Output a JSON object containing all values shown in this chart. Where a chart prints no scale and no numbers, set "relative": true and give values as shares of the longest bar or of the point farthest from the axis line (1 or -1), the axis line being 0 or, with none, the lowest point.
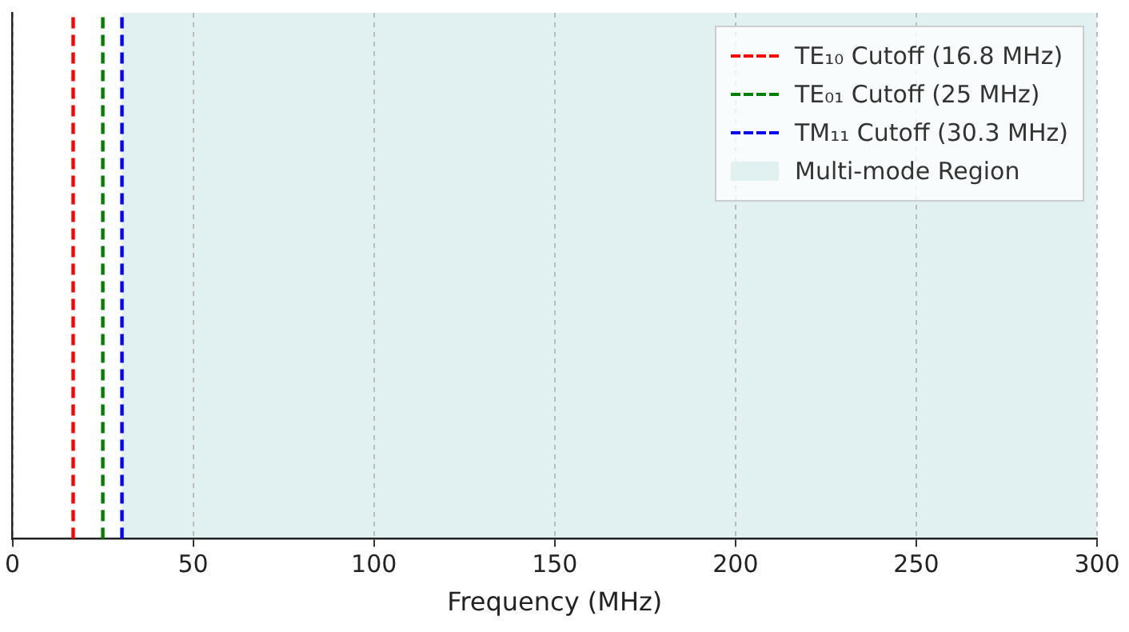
{
  "chart_data": {
    "type": "line",
    "xlabel": "Frequency (MHz)",
    "xlim": [
      0,
      300
    ],
    "xticks": [
      0,
      50,
      100,
      150,
      200,
      250,
      300
    ],
    "grid": "x",
    "tick_labels": "x",
    "legend": "top right",
    "relative": true,
    "line_style": "dashed",
    "marker": "none",
    "series": [
      {
        "name": "TE₁₀ Cutoff (16.8 MHz)",
        "color": "#ff0000",
        "x": [
          16.8,
          16.8
        ],
        "values": [
          0,
          1
        ]
      },
      {
        "name": "TE₀₁ Cutoff (25 MHz)",
        "color": "#008000",
        "x": [
          25,
          25
        ],
        "values": [
          0,
          1
        ]
      },
      {
        "name": "TM₁₁ Cutoff (30.3 MHz)",
        "color": "#0000ff",
        "x": [
          30.3,
          30.3
        ],
        "values": [
          0,
          1
        ]
      }
    ],
    "bands": [
      {
        "axis": "x",
        "from": 30.3,
        "to": 300,
        "label": "Multi-mode Region",
        "color": "#e1f1f1"
      }
    ]
  }
}
